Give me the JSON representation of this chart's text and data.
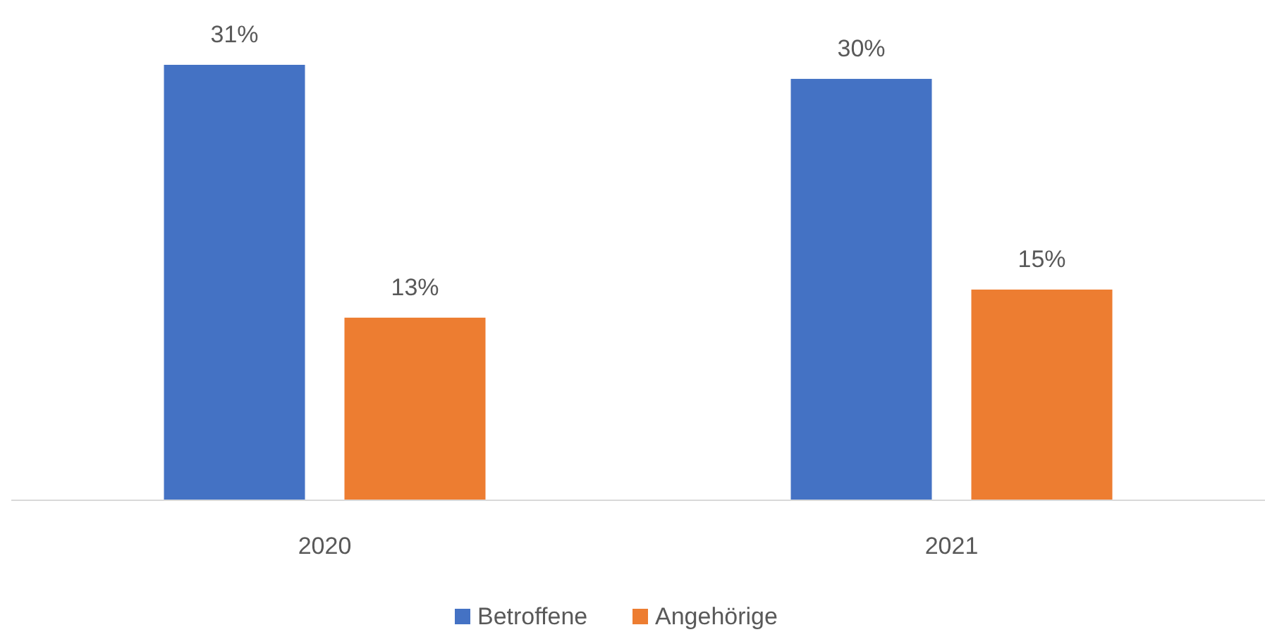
{
  "chart_data": {
    "type": "bar",
    "categories": [
      "2020",
      "2021"
    ],
    "series": [
      {
        "name": "Betroffene",
        "color": "#4472c4",
        "values": [
          31,
          30
        ],
        "value_labels": [
          "31%",
          "30%"
        ]
      },
      {
        "name": "Angehörige",
        "color": "#ed7d31",
        "values": [
          13,
          15
        ],
        "value_labels": [
          "13%",
          "15%"
        ]
      }
    ],
    "legend": "bottom"
  }
}
